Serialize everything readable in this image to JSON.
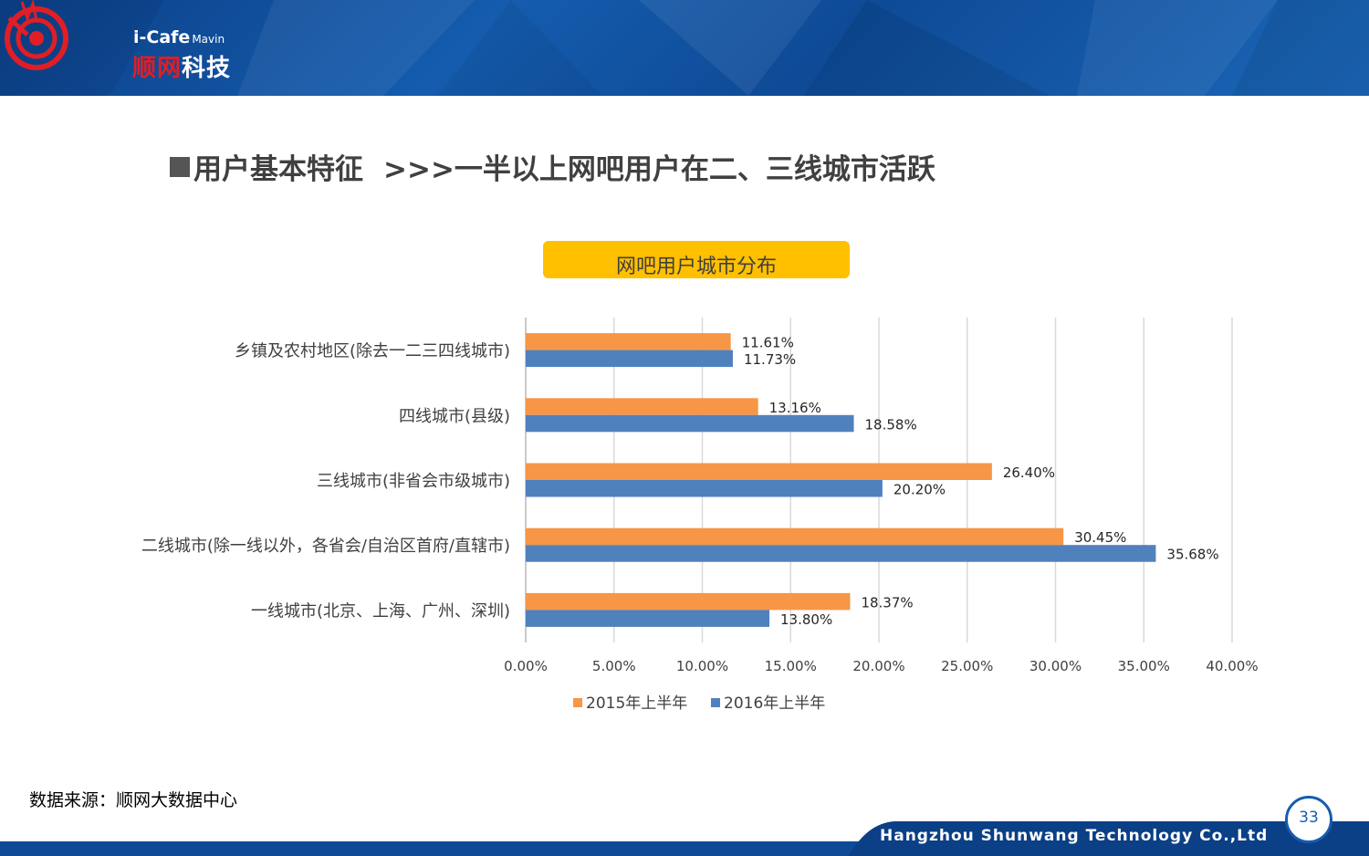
{
  "header": {
    "logo_en": "i-Cafe",
    "logo_en_small": "Mavin",
    "logo_cn_red": "顺网",
    "logo_cn_white": "科技"
  },
  "page": {
    "title_main": "用户基本特征",
    "title_sub": ">>>一半以上网吧用户在二、三线城市活跃"
  },
  "chart_data": {
    "type": "bar",
    "orientation": "horizontal",
    "title": "网吧用户城市分布",
    "categories": [
      "乡镇及农村地区(除去一二三四线城市)",
      "四线城市(县级)",
      "三线城市(非省会市级城市)",
      "二线城市(除一线以外，各省会/自治区首府/直辖市)",
      "一线城市(北京、上海、广州、深圳)"
    ],
    "series": [
      {
        "name": "2015年上半年",
        "color": "#f79646",
        "values": [
          11.61,
          13.16,
          26.4,
          30.45,
          18.37
        ],
        "labels": [
          "11.61%",
          "13.16%",
          "26.40%",
          "30.45%",
          "18.37%"
        ]
      },
      {
        "name": "2016年上半年",
        "color": "#4f81bd",
        "values": [
          11.73,
          18.58,
          20.2,
          35.68,
          13.8
        ],
        "labels": [
          "11.73%",
          "18.58%",
          "20.20%",
          "35.68%",
          "13.80%"
        ]
      }
    ],
    "xlim": [
      0,
      40
    ],
    "xticks": [
      "0.00%",
      "5.00%",
      "10.00%",
      "15.00%",
      "20.00%",
      "25.00%",
      "30.00%",
      "35.00%",
      "40.00%"
    ],
    "grid": true,
    "legend_position": "bottom"
  },
  "source": "数据来源：顺网大数据中心",
  "footer": {
    "company": "Hangzhou Shunwang Technology Co.,Ltd",
    "page_number": "33"
  }
}
